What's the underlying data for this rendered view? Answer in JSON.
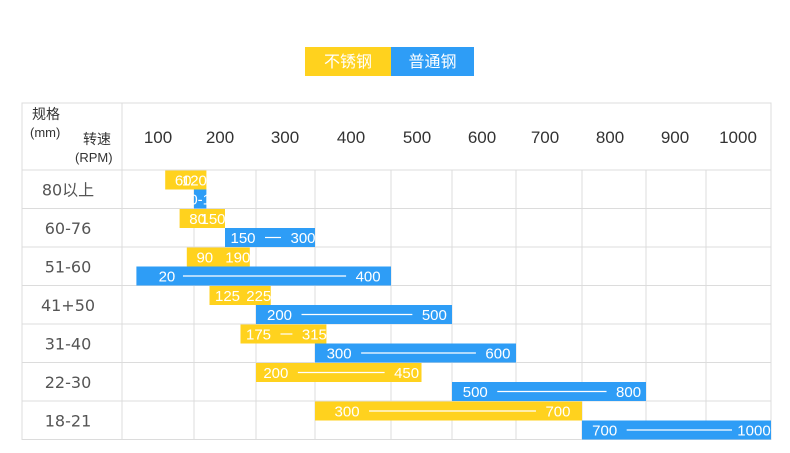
{
  "legend": {
    "stainless_label": "不锈钢",
    "carbon_label": "普通钢",
    "stainless_color": "#FFD21E",
    "carbon_color": "#2E9DF6"
  },
  "header": {
    "spec_label": "规格",
    "spec_unit": "(mm)",
    "speed_label": "转速",
    "speed_unit": "(RPM)"
  },
  "chart_data": {
    "type": "bar",
    "orientation": "horizontal-range",
    "x_ticks": [
      "100",
      "200",
      "300",
      "400",
      "500",
      "600",
      "700",
      "800",
      "900",
      "1000"
    ],
    "categories": [
      "80以上",
      "60-76",
      "51-60",
      "41+50",
      "31-40",
      "22-30",
      "18-21"
    ],
    "series": [
      {
        "name": "不锈钢",
        "color": "#FFD21E",
        "ranges": [
          [
            60,
            120
          ],
          [
            80,
            150
          ],
          [
            90,
            190
          ],
          [
            125,
            225
          ],
          [
            175,
            315
          ],
          [
            200,
            450
          ],
          [
            300,
            700
          ]
        ],
        "labels": [
          [
            "60",
            "120"
          ],
          [
            "80",
            "150"
          ],
          [
            "90",
            "190"
          ],
          [
            "125",
            "225"
          ],
          [
            "175",
            "315"
          ],
          [
            "200",
            "450"
          ],
          [
            "300",
            "700"
          ]
        ]
      },
      {
        "name": "普通钢",
        "color": "#2E9DF6",
        "ranges": [
          [
            100,
            120
          ],
          [
            150,
            300
          ],
          [
            20,
            400
          ],
          [
            200,
            500
          ],
          [
            300,
            600
          ],
          [
            500,
            800
          ],
          [
            700,
            1000
          ]
        ],
        "labels": [
          [
            "100-120"
          ],
          [
            "150",
            "300"
          ],
          [
            "20",
            "400"
          ],
          [
            "200",
            "500"
          ],
          [
            "300",
            "600"
          ],
          [
            "500",
            "800"
          ],
          [
            "700",
            "1000"
          ]
        ]
      }
    ]
  }
}
